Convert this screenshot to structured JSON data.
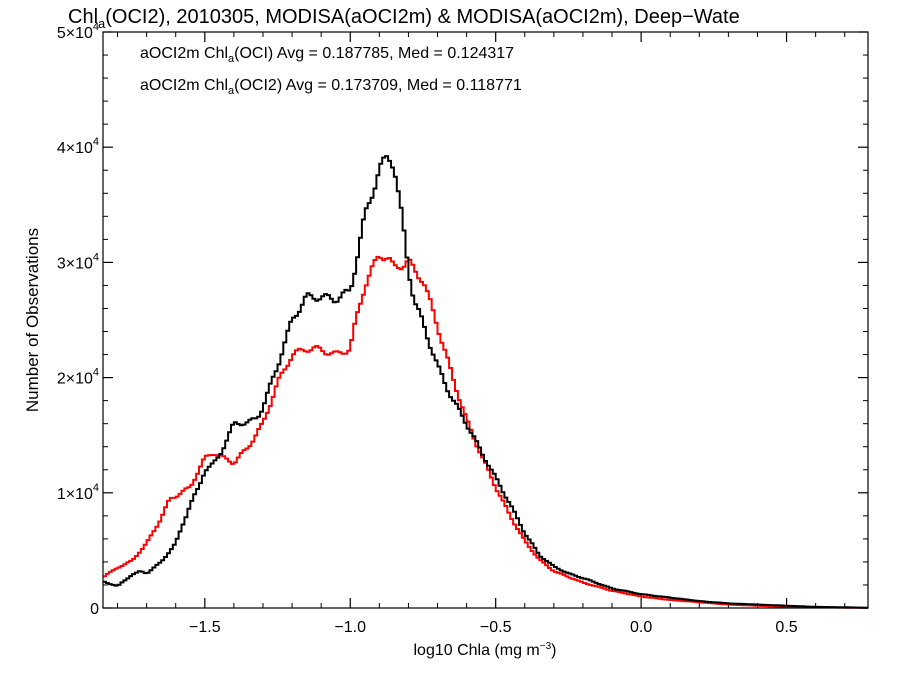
{
  "chart_data": {
    "type": "line",
    "title": {
      "pre": "Chl",
      "sub": "a",
      "post": "(OCI2), 2010305, MODISA(aOCI2m) & MODISA(aOCI2m), Deep−Wate"
    },
    "xlabel": {
      "pre": "log10 Chla (mg m",
      "sup": "−3",
      "post": ")"
    },
    "ylabel": "Number of Observations",
    "xlim": [
      -1.85,
      0.78
    ],
    "ylim": [
      0,
      50000
    ],
    "x_ticks": [
      {
        "value": -1.5,
        "label": "−1.5"
      },
      {
        "value": -1.0,
        "label": "−1.0"
      },
      {
        "value": -0.5,
        "label": "−0.5"
      },
      {
        "value": 0.0,
        "label": "0.0"
      },
      {
        "value": 0.5,
        "label": "0.5"
      }
    ],
    "y_ticks": [
      {
        "value": 0,
        "base": "0",
        "exp": ""
      },
      {
        "value": 10000,
        "base": "1×10",
        "exp": "4"
      },
      {
        "value": 20000,
        "base": "2×10",
        "exp": "4"
      },
      {
        "value": 30000,
        "base": "3×10",
        "exp": "4"
      },
      {
        "value": 40000,
        "base": "4×10",
        "exp": "4"
      },
      {
        "value": 50000,
        "base": "5×10",
        "exp": "4"
      }
    ],
    "grid": false,
    "legend": [
      {
        "color": "#000000",
        "pre": "aOCI2m Chl",
        "sub": "a",
        "post": "(OCI) Avg = 0.187785, Med = 0.124317"
      },
      {
        "color": "#ff0000",
        "pre": "aOCI2m Chl",
        "sub": "a",
        "post": "(OCI2) Avg = 0.173709, Med = 0.118771"
      }
    ],
    "series": [
      {
        "color": "#000000",
        "x": [
          -1.85,
          -1.8,
          -1.75,
          -1.72,
          -1.7,
          -1.65,
          -1.6,
          -1.55,
          -1.52,
          -1.5,
          -1.47,
          -1.45,
          -1.4,
          -1.35,
          -1.32,
          -1.3,
          -1.25,
          -1.2,
          -1.15,
          -1.12,
          -1.1,
          -1.05,
          -1.0,
          -0.98,
          -0.95,
          -0.9,
          -0.87,
          -0.85,
          -0.82,
          -0.8,
          -0.78,
          -0.75,
          -0.7,
          -0.65,
          -0.6,
          -0.55,
          -0.5,
          -0.45,
          -0.4,
          -0.35,
          -0.3,
          -0.25,
          -0.2,
          -0.1,
          0.0,
          0.1,
          0.2,
          0.3,
          0.4,
          0.5,
          0.6,
          0.7,
          0.78
        ],
        "values": [
          2300,
          1900,
          2900,
          3200,
          3000,
          4000,
          5600,
          9000,
          10500,
          12000,
          12500,
          13200,
          16000,
          16100,
          16500,
          17500,
          21000,
          25000,
          27000,
          27000,
          27000,
          26800,
          27500,
          30000,
          34000,
          38000,
          39300,
          38500,
          33500,
          29500,
          26700,
          24700,
          21000,
          18200,
          16000,
          13600,
          11300,
          9000,
          6500,
          4600,
          3600,
          3000,
          2600,
          1700,
          1200,
          900,
          600,
          400,
          300,
          200,
          100,
          60,
          20
        ]
      },
      {
        "color": "#ff0000",
        "x": [
          -1.85,
          -1.8,
          -1.75,
          -1.7,
          -1.65,
          -1.62,
          -1.6,
          -1.55,
          -1.5,
          -1.47,
          -1.45,
          -1.4,
          -1.35,
          -1.3,
          -1.25,
          -1.2,
          -1.15,
          -1.12,
          -1.1,
          -1.05,
          -1.0,
          -0.98,
          -0.95,
          -0.9,
          -0.87,
          -0.85,
          -0.82,
          -0.8,
          -0.78,
          -0.75,
          -0.7,
          -0.65,
          -0.6,
          -0.55,
          -0.5,
          -0.45,
          -0.4,
          -0.35,
          -0.3,
          -0.25,
          -0.2,
          -0.1,
          0.0,
          0.1,
          0.2,
          0.3,
          0.4,
          0.5,
          0.6,
          0.7,
          0.78
        ],
        "values": [
          2700,
          3500,
          4100,
          5600,
          7800,
          9500,
          9700,
          10500,
          13000,
          13500,
          13200,
          12600,
          14000,
          16000,
          19500,
          22000,
          22500,
          22500,
          22400,
          22000,
          22500,
          25000,
          28000,
          30700,
          30400,
          29500,
          29800,
          30100,
          29300,
          28500,
          24500,
          20200,
          16300,
          13300,
          10500,
          8000,
          5800,
          4200,
          3200,
          2700,
          2200,
          1500,
          1000,
          700,
          500,
          300,
          200,
          100,
          60,
          30,
          10
        ]
      }
    ]
  }
}
